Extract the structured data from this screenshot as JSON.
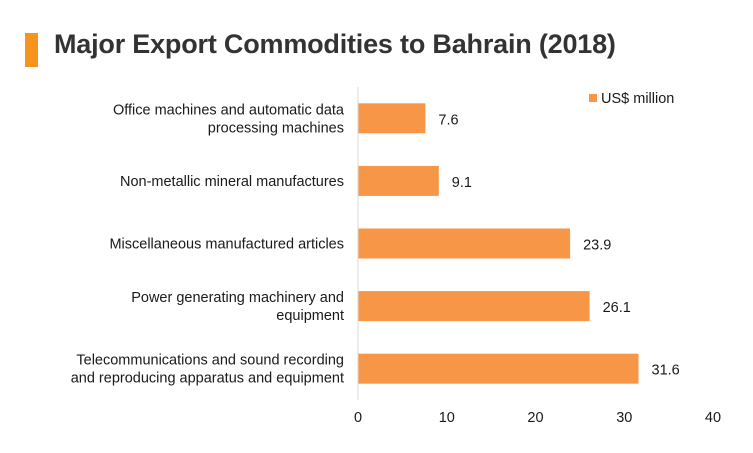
{
  "colors": {
    "accent": "#F7941D",
    "bar": "#F79646",
    "text": "#333333"
  },
  "chart_data": {
    "type": "bar",
    "orientation": "horizontal",
    "title": "Major Export Commodities to Bahrain (2018)",
    "categories": [
      [
        "Office machines and automatic data",
        "processing machines"
      ],
      [
        "Non-metallic mineral manufactures"
      ],
      [
        "Miscellaneous manufactured articles"
      ],
      [
        "Power generating machinery and",
        "equipment"
      ],
      [
        "Telecommunications and sound recording",
        "and reproducing apparatus and equipment"
      ]
    ],
    "series": [
      {
        "name": "US$ million",
        "values": [
          7.6,
          9.1,
          23.9,
          26.1,
          31.6
        ],
        "value_labels": [
          "7.6",
          "9.1",
          "23.9",
          "26.1",
          "31.6"
        ]
      }
    ],
    "xlim": [
      0,
      40
    ],
    "xticks": [
      0,
      10,
      20,
      30,
      40
    ],
    "xlabel": "",
    "ylabel": "",
    "grid": false,
    "legend_position": "top-right"
  }
}
